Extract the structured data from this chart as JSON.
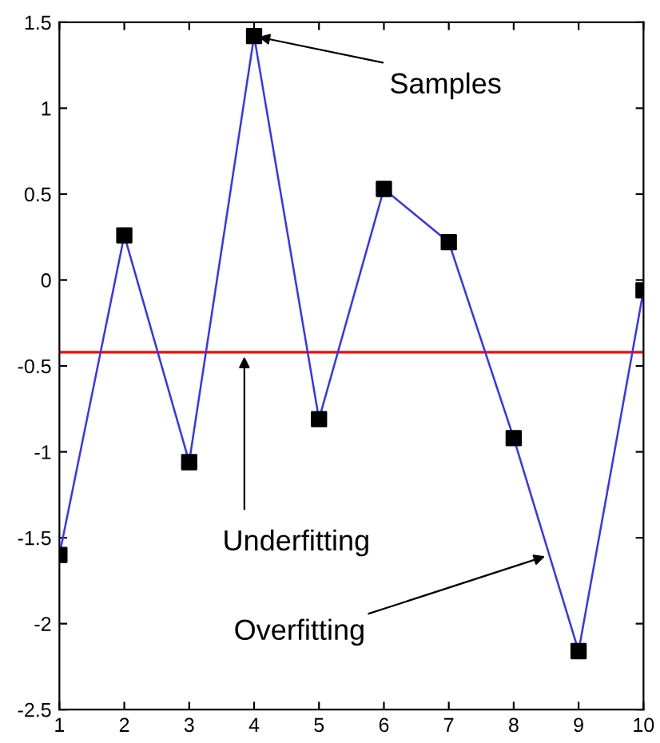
{
  "chart_data": {
    "type": "line",
    "x": [
      1,
      2,
      3,
      4,
      5,
      6,
      7,
      8,
      9,
      10
    ],
    "series": [
      {
        "color": "#3333ff",
        "colors": [
          "#000000",
          "#000000",
          "#000000",
          "#000000",
          "#000000",
          "#000000",
          "#000000",
          "#000000",
          "#000000",
          "#000000"
        ],
        "values": [
          -1.6,
          0.26,
          -1.06,
          1.42,
          -0.81,
          0.53,
          0.22,
          -0.92,
          -2.16,
          -0.06
        ]
      }
    ],
    "marker": "square",
    "line_style": "solid",
    "xlim": [
      1,
      10
    ],
    "xticks": [
      1,
      2,
      3,
      4,
      5,
      6,
      7,
      8,
      9,
      10
    ],
    "ylim": [
      -2.5,
      1.5
    ],
    "yticks": [
      -2.5,
      -2,
      -1.5,
      -1,
      -0.5,
      0,
      0.5,
      1,
      1.5
    ],
    "ref_lines": [
      {
        "axis": "y",
        "value": -0.42,
        "color": "#ff0000"
      }
    ],
    "annotations": [
      {
        "text": "Samples",
        "x": 4,
        "y": 1.42
      },
      {
        "text": "Underfitting",
        "x": 3.85,
        "y": -0.42
      },
      {
        "text": "Overfitting",
        "x": 8.55,
        "y": -1.6
      }
    ],
    "grid": false,
    "legend": false
  }
}
